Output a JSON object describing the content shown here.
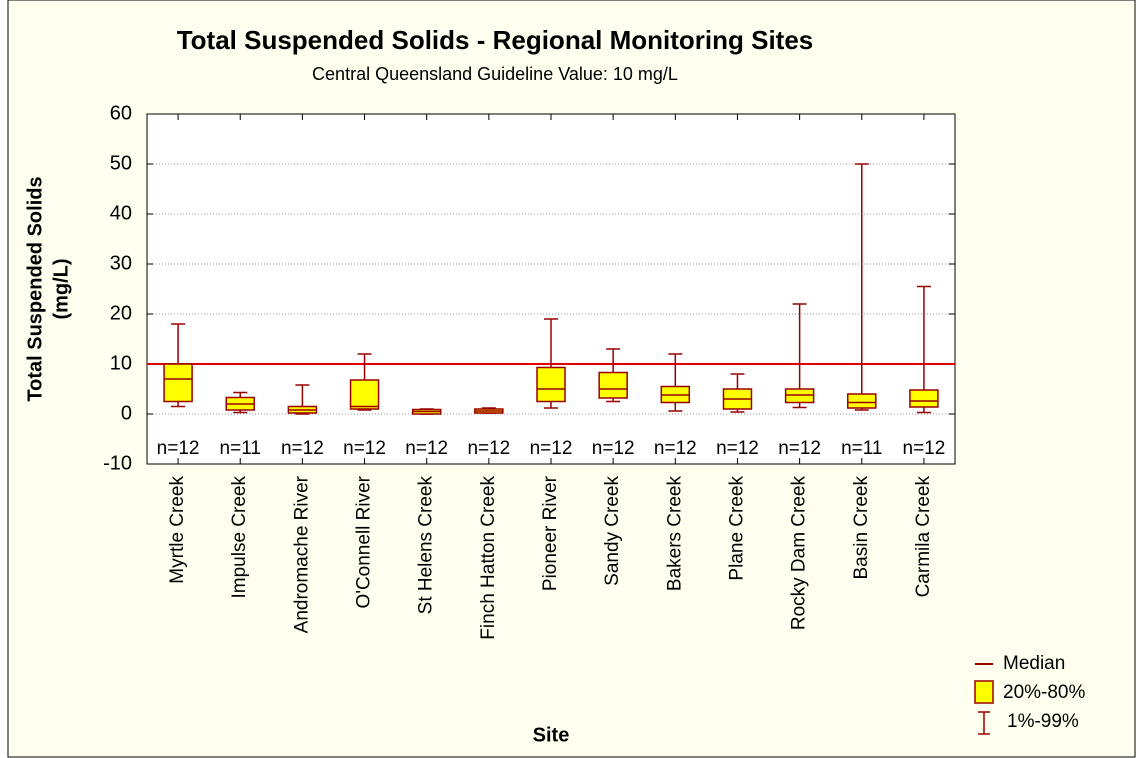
{
  "chart_data": {
    "type": "box",
    "title": "Total Suspended Solids - Regional Monitoring Sites",
    "subtitle": "Central Queensland Guideline Value: 10 mg/L",
    "y_label": [
      "Total Suspended Solids",
      "(mg/L)"
    ],
    "x_label": "Site",
    "categories": [
      "Myrtle Creek",
      "Impulse Creek",
      "Andromache River",
      "O'Connell River",
      "St Helens Creek",
      "Finch Hatton Creek",
      "Pioneer River",
      "Sandy Creek",
      "Bakers Creek",
      "Plane Creek",
      "Rocky Dam Creek",
      "Basin Creek",
      "Carmila Creek"
    ],
    "n_labels": [
      "n=12",
      "n=11",
      "n=12",
      "n=12",
      "n=12",
      "n=12",
      "n=12",
      "n=12",
      "n=12",
      "n=12",
      "n=12",
      "n=11",
      "n=12"
    ],
    "whisker_low": [
      1.5,
      0.3,
      0,
      0.8,
      0,
      0.2,
      1.2,
      2.5,
      0.6,
      0.4,
      1.3,
      0.8,
      0.3
    ],
    "q20": [
      2.5,
      0.8,
      0.2,
      1,
      0,
      0.2,
      2.5,
      3.2,
      2.3,
      1,
      2.3,
      1.2,
      1.4
    ],
    "median": [
      7,
      2,
      0.8,
      1.5,
      0.5,
      0.6,
      5,
      5,
      3.8,
      3,
      3.8,
      2.3,
      2.6
    ],
    "q80": [
      10,
      3.3,
      1.5,
      6.8,
      0.9,
      1,
      9.3,
      8.3,
      5.5,
      5,
      5,
      4,
      4.8
    ],
    "whisker_high": [
      18,
      4.3,
      5.8,
      12,
      1,
      1.2,
      19,
      13,
      12,
      8,
      22,
      50,
      25.5
    ],
    "box_color": "#ffff00",
    "line_color": "#990000",
    "reference_line": {
      "value": 10,
      "color": "#e00000"
    },
    "ylim": [
      -10,
      60
    ],
    "yticks": [
      -10,
      0,
      10,
      20,
      30,
      40,
      50,
      60
    ],
    "grid": true,
    "legend": [
      "Median",
      "20%-80%",
      "1%-99%"
    ],
    "legend_position": "bottom-right"
  }
}
